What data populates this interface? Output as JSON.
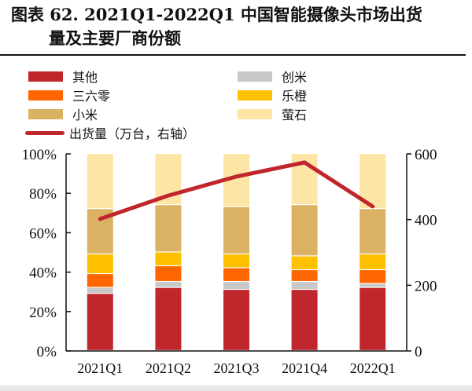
{
  "title": {
    "line1": "图表 62. 2021Q1-2022Q1 中国智能摄像头市场出货",
    "line2": "量及主要厂商份额"
  },
  "chart_data": {
    "type": "bar",
    "stacked": true,
    "title": "2021Q1-2022Q1 中国智能摄像头市场出货量及主要厂商份额",
    "categories": [
      "2021Q1",
      "2021Q2",
      "2021Q3",
      "2021Q4",
      "2022Q1"
    ],
    "series": [
      {
        "name": "其他",
        "color": "#c0272d",
        "values": [
          29,
          32,
          31,
          31,
          32
        ]
      },
      {
        "name": "创米",
        "color": "#c8c8c8",
        "values": [
          3,
          3,
          4,
          4,
          2
        ]
      },
      {
        "name": "三六零",
        "color": "#ff6600",
        "values": [
          7,
          8,
          7,
          6,
          7
        ]
      },
      {
        "name": "乐橙",
        "color": "#ffc000",
        "values": [
          10,
          7,
          7,
          7,
          8
        ]
      },
      {
        "name": "小米",
        "color": "#dbb264",
        "values": [
          23,
          24,
          24,
          26,
          23
        ]
      },
      {
        "name": "萤石",
        "color": "#fde5a6",
        "values": [
          28,
          26,
          27,
          26,
          28
        ]
      }
    ],
    "line_series": {
      "name": "出货量（万台，右轴）",
      "color": "#c0272d",
      "axis": "right",
      "values": [
        402,
        473,
        531,
        574,
        440
      ]
    },
    "left_axis": {
      "ylim": [
        0,
        100
      ],
      "ticks": [
        "0%",
        "20%",
        "40%",
        "60%",
        "80%",
        "100%"
      ]
    },
    "right_axis": {
      "ylim": [
        0,
        600
      ],
      "ticks": [
        "0",
        "200",
        "400",
        "600"
      ]
    },
    "legend": {
      "placement": "top",
      "entries": [
        "其他",
        "创米",
        "三六零",
        "乐橙",
        "小米",
        "萤石",
        "出货量（万台，右轴）"
      ]
    },
    "grid": false
  }
}
